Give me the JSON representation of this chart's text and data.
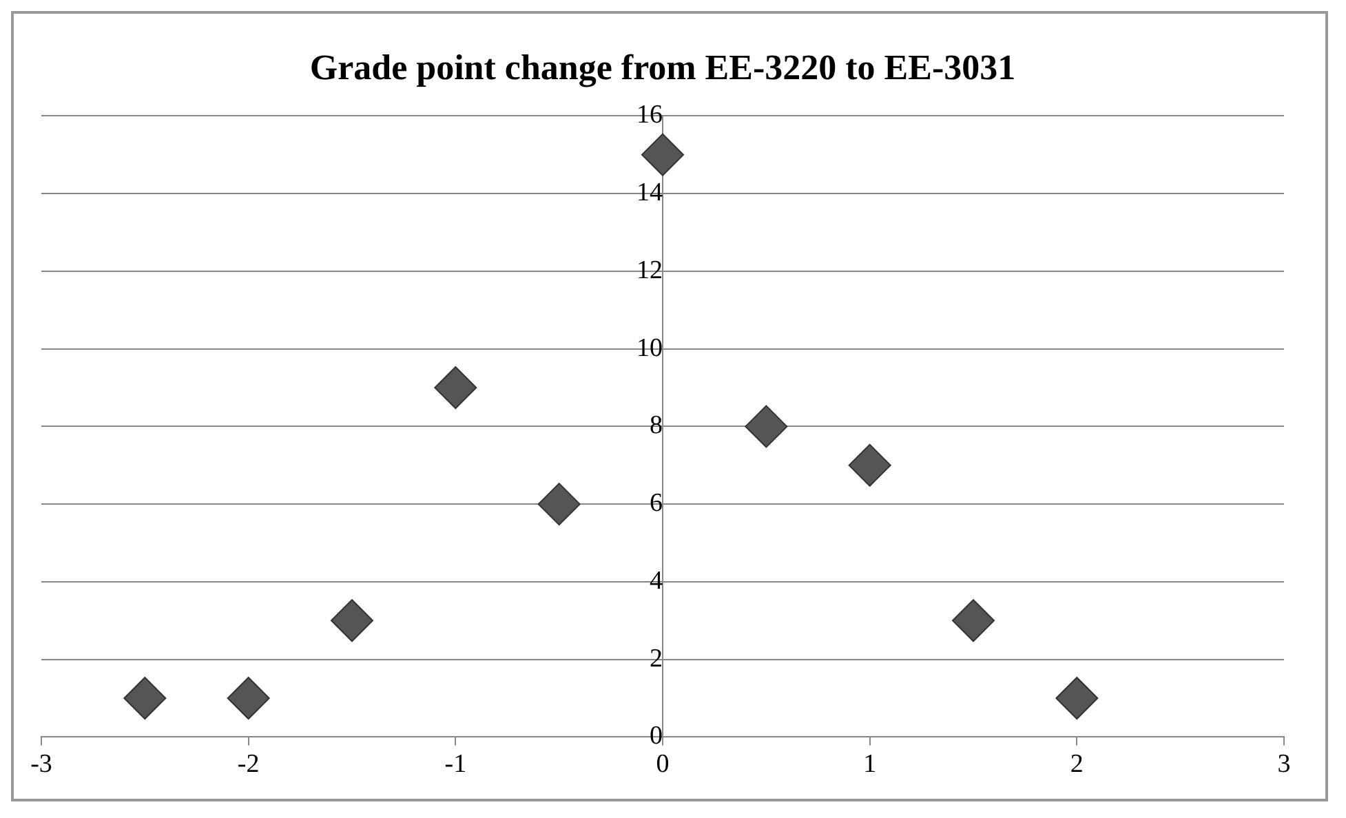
{
  "chart_data": {
    "type": "scatter",
    "title": "Grade point change from EE-3220 to EE-3031",
    "x": [
      -2.5,
      -2,
      -1.5,
      -1,
      -0.5,
      0,
      0.5,
      1,
      1.5,
      2
    ],
    "series": [
      {
        "color": "#555555",
        "values": [
          1,
          1,
          3,
          9,
          6,
          15,
          8,
          7,
          3,
          1
        ]
      }
    ],
    "xlim": [
      -3,
      3
    ],
    "xticks": [
      -3,
      -2,
      -1,
      0,
      1,
      2,
      3
    ],
    "ylim": [
      0,
      16
    ],
    "yticks": [
      0,
      2,
      4,
      6,
      8,
      10,
      12,
      14,
      16
    ],
    "grid": "y",
    "marker": "diamond",
    "legend": false
  }
}
